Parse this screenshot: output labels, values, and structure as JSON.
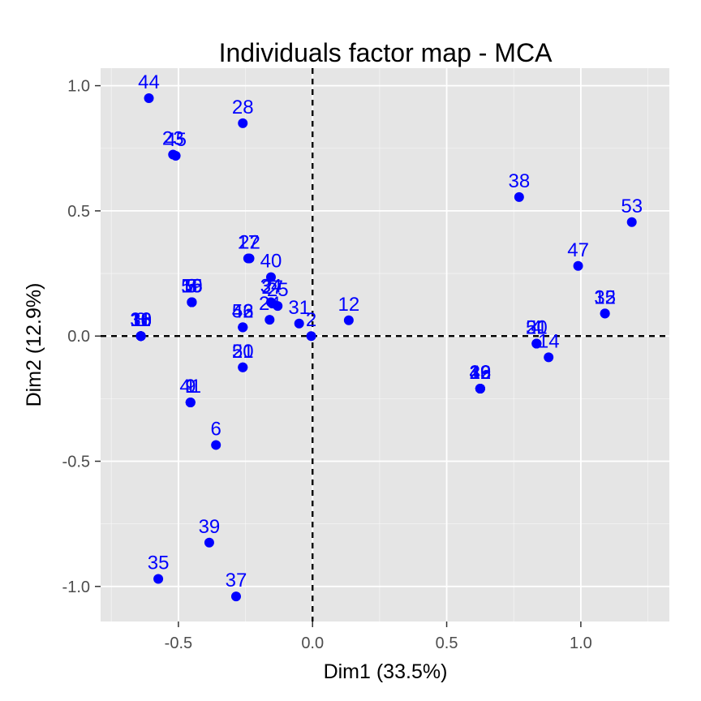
{
  "chart_data": {
    "type": "scatter",
    "title": "Individuals factor map - MCA",
    "xlabel": "Dim1 (33.5%)",
    "ylabel": "Dim2 (12.9%)",
    "xlim": [
      -0.79,
      1.33
    ],
    "ylim": [
      -1.14,
      1.07
    ],
    "xticks": [
      -0.5,
      0.0,
      0.5,
      1.0
    ],
    "xtick_labels": [
      "-0.5",
      "0.0",
      "0.5",
      "1.0"
    ],
    "yticks": [
      -1.0,
      -0.5,
      0.0,
      0.5,
      1.0
    ],
    "ytick_labels": [
      "-1.0",
      "-0.5",
      "0.0",
      "0.5",
      "1.0"
    ],
    "grid": true,
    "reference_lines": {
      "x": 0,
      "y": 0,
      "style": "dashed"
    },
    "colors": {
      "panel": "#e5e5e5",
      "grid": "#ffffff",
      "point": "#0000ff",
      "label": "#0000ff",
      "refline": "#000000"
    },
    "points": [
      {
        "label": "44",
        "x": -0.61,
        "y": 0.95
      },
      {
        "label": "28",
        "x": -0.26,
        "y": 0.85
      },
      {
        "label": "23",
        "x": -0.52,
        "y": 0.725
      },
      {
        "label": "45",
        "x": -0.51,
        "y": 0.72
      },
      {
        "label": "38",
        "x": 0.77,
        "y": 0.555
      },
      {
        "label": "53",
        "x": 1.19,
        "y": 0.455
      },
      {
        "label": "17",
        "x": -0.24,
        "y": 0.31
      },
      {
        "label": "22",
        "x": -0.235,
        "y": 0.31
      },
      {
        "label": "47",
        "x": 0.99,
        "y": 0.28
      },
      {
        "label": "55",
        "x": -0.45,
        "y": 0.135
      },
      {
        "label": "5",
        "x": -0.45,
        "y": 0.135
      },
      {
        "label": "19",
        "x": -0.45,
        "y": 0.135
      },
      {
        "label": "3",
        "x": -0.45,
        "y": 0.135
      },
      {
        "label": "7",
        "x": -0.45,
        "y": 0.135
      },
      {
        "label": "16",
        "x": -0.45,
        "y": 0.135
      },
      {
        "label": "40",
        "x": -0.155,
        "y": 0.235
      },
      {
        "label": "34",
        "x": -0.155,
        "y": 0.135
      },
      {
        "label": "27",
        "x": -0.15,
        "y": 0.13
      },
      {
        "label": "25",
        "x": -0.13,
        "y": 0.12
      },
      {
        "label": "15",
        "x": 1.09,
        "y": 0.09
      },
      {
        "label": "32",
        "x": 1.09,
        "y": 0.09
      },
      {
        "label": "31",
        "x": -0.05,
        "y": 0.05
      },
      {
        "label": "12",
        "x": 0.135,
        "y": 0.063
      },
      {
        "label": "24",
        "x": -0.16,
        "y": 0.065
      },
      {
        "label": "18",
        "x": -0.64,
        "y": 0.0
      },
      {
        "label": "36",
        "x": -0.64,
        "y": 0.0
      },
      {
        "label": "30",
        "x": -0.64,
        "y": 0.0
      },
      {
        "label": "8",
        "x": -0.64,
        "y": 0.0
      },
      {
        "label": "10",
        "x": -0.64,
        "y": 0.0
      },
      {
        "label": "11",
        "x": -0.64,
        "y": 0.0
      },
      {
        "label": "43",
        "x": -0.26,
        "y": 0.035
      },
      {
        "label": "52",
        "x": -0.26,
        "y": 0.035
      },
      {
        "label": "46",
        "x": -0.26,
        "y": 0.035
      },
      {
        "label": "4",
        "x": 0.835,
        "y": -0.03
      },
      {
        "label": "51",
        "x": 0.835,
        "y": -0.03
      },
      {
        "label": "20",
        "x": 0.835,
        "y": -0.03
      },
      {
        "label": "14",
        "x": 0.88,
        "y": -0.085
      },
      {
        "label": "21",
        "x": -0.26,
        "y": -0.125
      },
      {
        "label": "50",
        "x": -0.26,
        "y": -0.125
      },
      {
        "label": "33",
        "x": 0.625,
        "y": -0.21
      },
      {
        "label": "26",
        "x": 0.625,
        "y": -0.21
      },
      {
        "label": "29",
        "x": 0.625,
        "y": -0.21
      },
      {
        "label": "13",
        "x": 0.625,
        "y": -0.21
      },
      {
        "label": "49",
        "x": 0.625,
        "y": -0.21
      },
      {
        "label": "42",
        "x": 0.625,
        "y": -0.21
      },
      {
        "label": "1",
        "x": -0.455,
        "y": -0.265
      },
      {
        "label": "41",
        "x": -0.455,
        "y": -0.265
      },
      {
        "label": "9",
        "x": -0.455,
        "y": -0.265
      },
      {
        "label": "6",
        "x": -0.36,
        "y": -0.435
      },
      {
        "label": "39",
        "x": -0.385,
        "y": -0.825
      },
      {
        "label": "35",
        "x": -0.575,
        "y": -0.97
      },
      {
        "label": "37",
        "x": -0.285,
        "y": -1.04
      },
      {
        "label": "2",
        "x": -0.005,
        "y": 0.0
      }
    ]
  }
}
